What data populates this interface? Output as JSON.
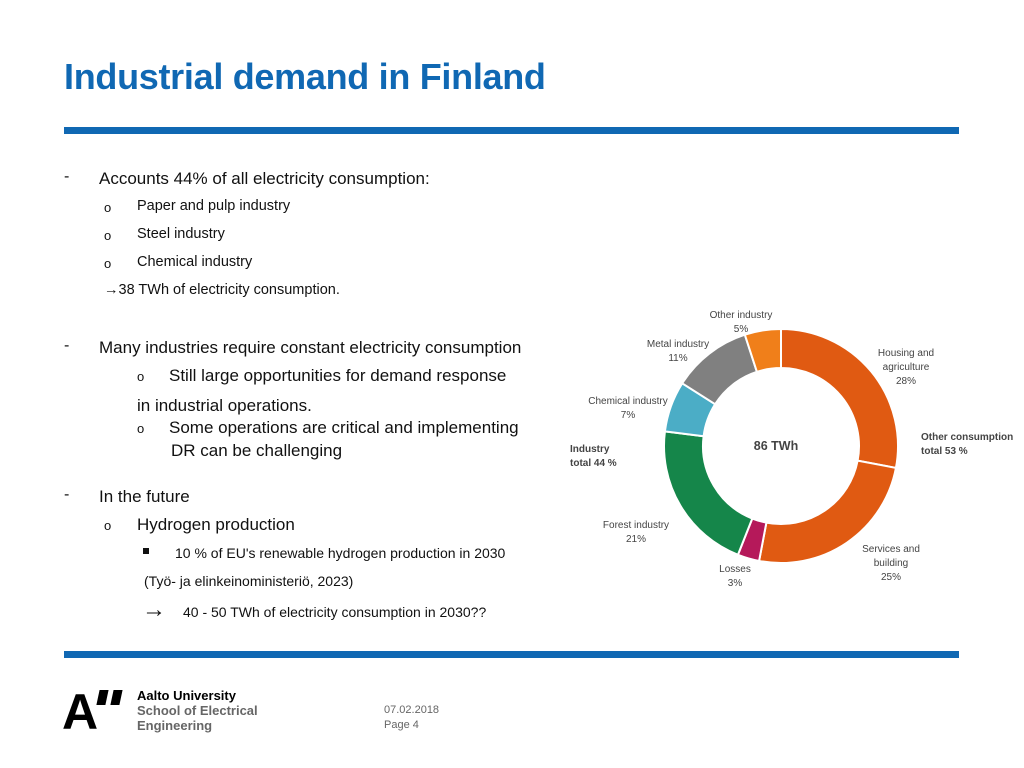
{
  "slide": {
    "title": "Industrial demand in Finland",
    "date": "07.02.2018",
    "page": "Page 4"
  },
  "bullets": {
    "dash": "-",
    "circle": "o",
    "arrow": "→",
    "section1": "Accounts 44% of all electricity consumption:",
    "section1_items": [
      "Paper and pulp industry",
      "Steel industry",
      "Chemical industry"
    ],
    "section1_result": "→38 TWh of electricity consumption.",
    "section2": "Many industries require constant electricity consumption",
    "section2_item1": "Still large opportunities for demand response",
    "section2_item1_cont": "in industrial operations.",
    "section2_item2": "Some operations are critical and implementing",
    "section2_item2_cont": "DR can be challenging",
    "section3": "In the future",
    "section3_item": "Hydrogen production",
    "section3_subitem": "10 % of  EU's renewable hydrogen production in 2030",
    "section3_source": "(Työ- ja elinkeinoministeriö, 2023)",
    "section3_result": "40 - 50 TWh of electricity consumption in 2030??"
  },
  "logo": {
    "mark": "A",
    "line1": "Aalto University",
    "line2": "School of Electrical",
    "line3": "Engineering"
  },
  "chart_data": {
    "type": "pie",
    "center_label": "86 TWh",
    "slices": [
      {
        "name": "Housing and agriculture",
        "lines": [
          "Housing and",
          "agriculture"
        ],
        "pct_label": "28%",
        "value": 28,
        "color": "#e05a12"
      },
      {
        "name": "Services and building",
        "lines": [
          "Services and",
          "building"
        ],
        "pct_label": "25%",
        "value": 25,
        "color": "#e05a12"
      },
      {
        "name": "Losses",
        "lines": [
          "Losses"
        ],
        "pct_label": "3%",
        "value": 3,
        "color": "#b5195a"
      },
      {
        "name": "Forest industry",
        "lines": [
          "Forest industry"
        ],
        "pct_label": "21%",
        "value": 21,
        "color": "#15864a"
      },
      {
        "name": "Chemical industry",
        "lines": [
          "Chemical industry"
        ],
        "pct_label": "7%",
        "value": 7,
        "color": "#4badc6"
      },
      {
        "name": "Metal industry",
        "lines": [
          "Metal industry"
        ],
        "pct_label": "11%",
        "value": 11,
        "color": "#808080"
      },
      {
        "name": "Other industry",
        "lines": [
          "Other industry"
        ],
        "pct_label": "5%",
        "value": 5,
        "color": "#f07f1a"
      }
    ],
    "group_labels": [
      {
        "lines": [
          "Other consumption",
          "total 53 %"
        ]
      },
      {
        "lines": [
          "Industry",
          "total 44 %"
        ]
      }
    ]
  }
}
